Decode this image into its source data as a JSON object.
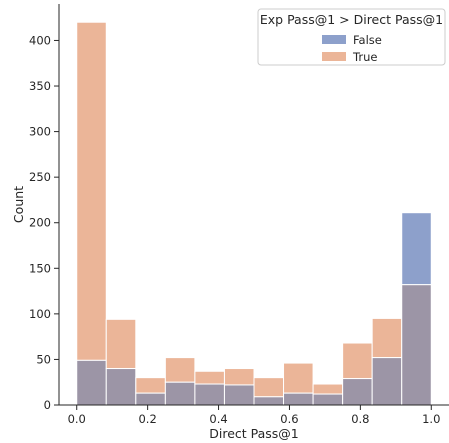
{
  "chart_data": {
    "type": "bar",
    "subtype": "overlapping-histogram",
    "xlabel": "Direct Pass@1",
    "ylabel": "Count",
    "xlim": [
      -0.05,
      1.05
    ],
    "ylim": [
      0,
      440
    ],
    "x_ticks": [
      "0.0",
      "0.2",
      "0.4",
      "0.6",
      "0.8",
      "1.0"
    ],
    "y_ticks": [
      "0",
      "50",
      "100",
      "150",
      "200",
      "250",
      "300",
      "350",
      "400"
    ],
    "bin_width": 0.0833,
    "bins_start": [
      0.0,
      0.0833,
      0.1667,
      0.25,
      0.3333,
      0.4167,
      0.5,
      0.5833,
      0.6667,
      0.75,
      0.8333,
      0.9167
    ],
    "legend": {
      "title": "Exp Pass@1 > Direct Pass@1",
      "position": "upper-right"
    },
    "series": [
      {
        "name": "False",
        "color": "#8da0cb",
        "values": [
          49,
          40,
          13,
          25,
          23,
          22,
          9,
          13,
          12,
          29,
          52,
          211
        ]
      },
      {
        "name": "True",
        "color": "#ebb598",
        "values": [
          420,
          94,
          30,
          52,
          37,
          40,
          30,
          46,
          23,
          68,
          95,
          132
        ]
      }
    ],
    "overlap_color": "#9c95a6",
    "grid": false
  }
}
